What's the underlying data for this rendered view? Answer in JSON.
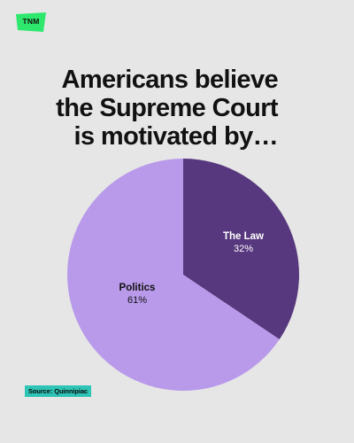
{
  "brand": {
    "logo_text": "TNM",
    "logo_color": "#2ee86e"
  },
  "headline": {
    "lines": [
      "Americans believe",
      "the Supreme Court",
      "is motivated by…"
    ]
  },
  "source": "Source: Quinnipiac",
  "colors": {
    "background": "#e6e6e6",
    "text": "#111111",
    "source_bg": "#2ec4b6"
  },
  "chart_data": {
    "type": "pie",
    "title": "Americans believe the Supreme Court is motivated by…",
    "slices": [
      {
        "label": "The Law",
        "value": 32,
        "display": "32%",
        "color": "#57377d",
        "label_color": "#ffffff"
      },
      {
        "label": "Politics",
        "value": 61,
        "display": "61%",
        "color": "#b99aea",
        "label_color": "#111111"
      }
    ],
    "start_angle_deg": 0,
    "direction": "clockwise",
    "note": ""
  }
}
